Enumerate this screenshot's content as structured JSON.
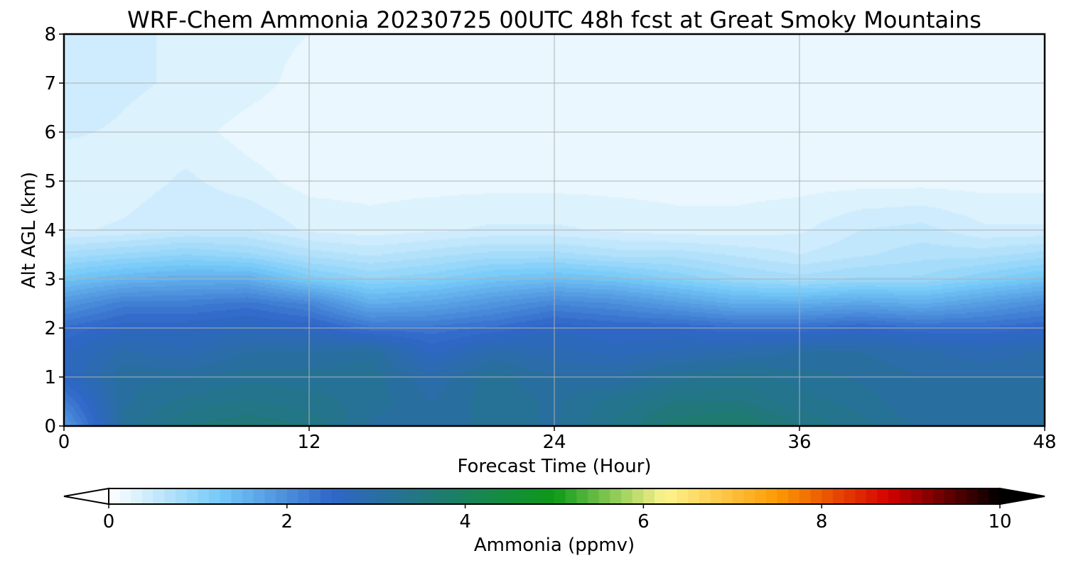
{
  "chart_data": {
    "type": "heatmap",
    "title": "WRF-Chem Ammonia  20230725 00UTC 48h fcst at Great Smoky Mountains",
    "xlabel": "Forecast Time (Hour)",
    "ylabel": "Alt AGL (km)",
    "xlim": [
      0,
      48
    ],
    "ylim": [
      0,
      8
    ],
    "xticks": [
      "0",
      "12",
      "24",
      "36",
      "48"
    ],
    "yticks": [
      "0",
      "1",
      "2",
      "3",
      "4",
      "5",
      "6",
      "7",
      "8"
    ],
    "grid": true,
    "x": [
      0,
      3,
      6,
      9,
      12,
      15,
      18,
      21,
      24,
      27,
      30,
      33,
      36,
      39,
      42,
      45,
      48
    ],
    "y": [
      0,
      0.5,
      1,
      1.5,
      2,
      2.5,
      3,
      3.5,
      4,
      5,
      6,
      7,
      8
    ],
    "z": [
      [
        1.8,
        3.2,
        3.5,
        3.6,
        3.5,
        3.1,
        3.0,
        3.2,
        3.1,
        3.4,
        3.7,
        3.8,
        3.5,
        3.3,
        3.1,
        3.1,
        3.0
      ],
      [
        2.2,
        3.1,
        3.3,
        3.4,
        3.3,
        3.2,
        3.0,
        3.2,
        3.1,
        3.3,
        3.5,
        3.5,
        3.3,
        3.2,
        3.0,
        3.1,
        3.0
      ],
      [
        2.6,
        3.1,
        3.1,
        3.2,
        3.2,
        3.2,
        2.9,
        3.2,
        3.0,
        3.0,
        3.2,
        3.3,
        3.2,
        3.1,
        3.0,
        3.0,
        3.0
      ],
      [
        2.6,
        2.9,
        2.8,
        3.0,
        3.0,
        3.1,
        2.6,
        2.9,
        2.8,
        2.7,
        2.8,
        2.9,
        3.0,
        3.0,
        2.9,
        2.8,
        2.9
      ],
      [
        2.4,
        2.6,
        2.6,
        2.7,
        2.6,
        2.3,
        2.3,
        2.4,
        2.6,
        2.5,
        2.5,
        2.4,
        2.4,
        2.5,
        2.4,
        2.4,
        2.5
      ],
      [
        1.9,
        2.2,
        2.2,
        2.3,
        2.1,
        1.6,
        1.7,
        1.9,
        2.1,
        2.0,
        1.8,
        1.6,
        1.6,
        1.7,
        1.6,
        1.8,
        2.0
      ],
      [
        1.3,
        1.5,
        1.6,
        1.6,
        1.2,
        1.0,
        1.1,
        1.3,
        1.4,
        1.3,
        1.1,
        0.9,
        0.8,
        0.9,
        0.9,
        1.1,
        1.3
      ],
      [
        0.8,
        0.9,
        1.0,
        0.9,
        0.7,
        0.6,
        0.7,
        0.8,
        0.8,
        0.7,
        0.7,
        0.6,
        0.5,
        0.6,
        0.7,
        0.7,
        0.8
      ],
      [
        0.35,
        0.4,
        0.5,
        0.5,
        0.35,
        0.3,
        0.35,
        0.4,
        0.4,
        0.35,
        0.3,
        0.3,
        0.35,
        0.5,
        0.55,
        0.4,
        0.4
      ],
      [
        0.25,
        0.3,
        0.4,
        0.3,
        0.2,
        0.2,
        0.2,
        0.2,
        0.2,
        0.2,
        0.2,
        0.2,
        0.2,
        0.2,
        0.2,
        0.2,
        0.2
      ],
      [
        0.4,
        0.35,
        0.3,
        0.2,
        0.15,
        0.15,
        0.15,
        0.15,
        0.15,
        0.15,
        0.15,
        0.15,
        0.15,
        0.15,
        0.15,
        0.15,
        0.15
      ],
      [
        0.5,
        0.4,
        0.35,
        0.3,
        0.2,
        0.2,
        0.15,
        0.15,
        0.15,
        0.15,
        0.15,
        0.15,
        0.15,
        0.15,
        0.15,
        0.15,
        0.2
      ],
      [
        0.45,
        0.45,
        0.3,
        0.3,
        0.25,
        0.25,
        0.15,
        0.15,
        0.15,
        0.15,
        0.15,
        0.15,
        0.15,
        0.15,
        0.15,
        0.15,
        0.2
      ]
    ],
    "colorbar": {
      "label": "Ammonia  (ppmv)",
      "min": 0,
      "max": 10,
      "ticks": [
        "0",
        "2",
        "4",
        "6",
        "8",
        "10"
      ],
      "extend": "both",
      "colors": [
        "#ffffff",
        "#74c9f8",
        "#3066c8",
        "#1e7b6e",
        "#0c9a17",
        "#fef48e",
        "#fc9a03",
        "#d40000",
        "#000000"
      ]
    }
  }
}
